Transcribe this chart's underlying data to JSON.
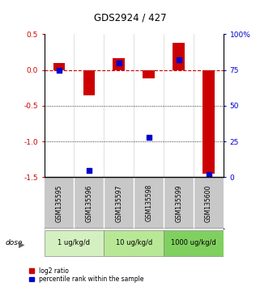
{
  "title": "GDS2924 / 427",
  "samples": [
    "GSM135595",
    "GSM135596",
    "GSM135597",
    "GSM135598",
    "GSM135599",
    "GSM135600"
  ],
  "log2_ratio": [
    0.1,
    -0.35,
    0.17,
    -0.12,
    0.38,
    -1.45
  ],
  "percentile_rank": [
    75,
    5,
    80,
    28,
    82,
    2
  ],
  "dose_groups": [
    {
      "label": "1 ug/kg/d",
      "samples": [
        0,
        1
      ],
      "color": "#d4f0c0"
    },
    {
      "label": "10 ug/kg/d",
      "samples": [
        2,
        3
      ],
      "color": "#b8e896"
    },
    {
      "label": "1000 ug/kg/d",
      "samples": [
        4,
        5
      ],
      "color": "#80d060"
    }
  ],
  "ylim_left": [
    -1.5,
    0.5
  ],
  "ylim_right": [
    0,
    100
  ],
  "left_ticks": [
    0.5,
    0.0,
    -0.5,
    -1.0,
    -1.5
  ],
  "right_ticks": [
    100,
    75,
    50,
    25,
    0
  ],
  "bar_color": "#cc0000",
  "point_color": "#0000cc",
  "zero_line_color": "#cc0000",
  "sample_bg_color": "#c8c8c8",
  "dose_label": "dose",
  "bar_width": 0.4
}
